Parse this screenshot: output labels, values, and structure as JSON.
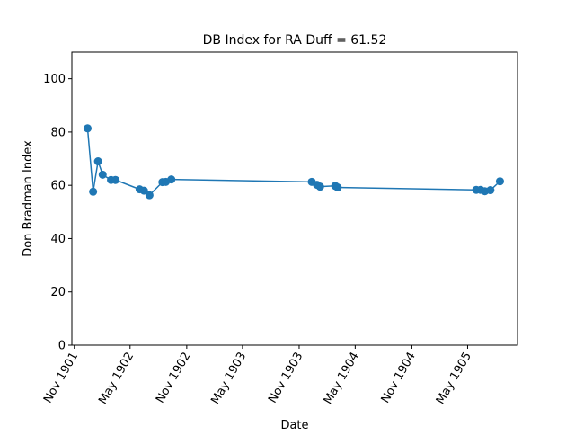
{
  "chart_data": {
    "type": "line",
    "title": "DB Index for RA Duff = 61.52",
    "xlabel": "Date",
    "ylabel": "Don Bradman Index",
    "ylim": [
      0,
      110
    ],
    "xlim": [
      "1901-10-24",
      "1905-10-10"
    ],
    "grid": false,
    "legend": "none",
    "line_color": "#1f77b4",
    "marker": "circle",
    "yticks": [
      0,
      20,
      40,
      60,
      80,
      100
    ],
    "xticks": [
      {
        "date": "1901-11-01",
        "label": "Nov 1901"
      },
      {
        "date": "1902-05-01",
        "label": "May 1902"
      },
      {
        "date": "1902-11-01",
        "label": "Nov 1902"
      },
      {
        "date": "1903-05-01",
        "label": "May 1903"
      },
      {
        "date": "1903-11-01",
        "label": "Nov 1903"
      },
      {
        "date": "1904-05-01",
        "label": "May 1904"
      },
      {
        "date": "1904-11-01",
        "label": "Nov 1904"
      },
      {
        "date": "1905-05-01",
        "label": "May 1905"
      }
    ],
    "points": [
      {
        "x": "1901-12-14",
        "y": 81.4
      },
      {
        "x": "1902-01-01",
        "y": 57.6
      },
      {
        "x": "1902-01-17",
        "y": 69.0
      },
      {
        "x": "1902-02-01",
        "y": 64.0
      },
      {
        "x": "1902-02-28",
        "y": 62.0
      },
      {
        "x": "1902-03-15",
        "y": 62.0
      },
      {
        "x": "1902-06-01",
        "y": 58.5
      },
      {
        "x": "1902-06-15",
        "y": 58.0
      },
      {
        "x": "1902-07-03",
        "y": 56.3
      },
      {
        "x": "1902-08-14",
        "y": 61.2
      },
      {
        "x": "1902-08-25",
        "y": 61.3
      },
      {
        "x": "1902-09-12",
        "y": 62.2
      },
      {
        "x": "1903-12-12",
        "y": 61.3
      },
      {
        "x": "1903-12-29",
        "y": 60.2
      },
      {
        "x": "1904-01-08",
        "y": 59.5
      },
      {
        "x": "1904-02-26",
        "y": 59.8
      },
      {
        "x": "1904-03-05",
        "y": 59.2
      },
      {
        "x": "1905-05-29",
        "y": 58.3
      },
      {
        "x": "1905-06-12",
        "y": 58.3
      },
      {
        "x": "1905-06-26",
        "y": 57.8
      },
      {
        "x": "1905-07-14",
        "y": 58.2
      },
      {
        "x": "1905-08-14",
        "y": 61.5
      }
    ]
  }
}
